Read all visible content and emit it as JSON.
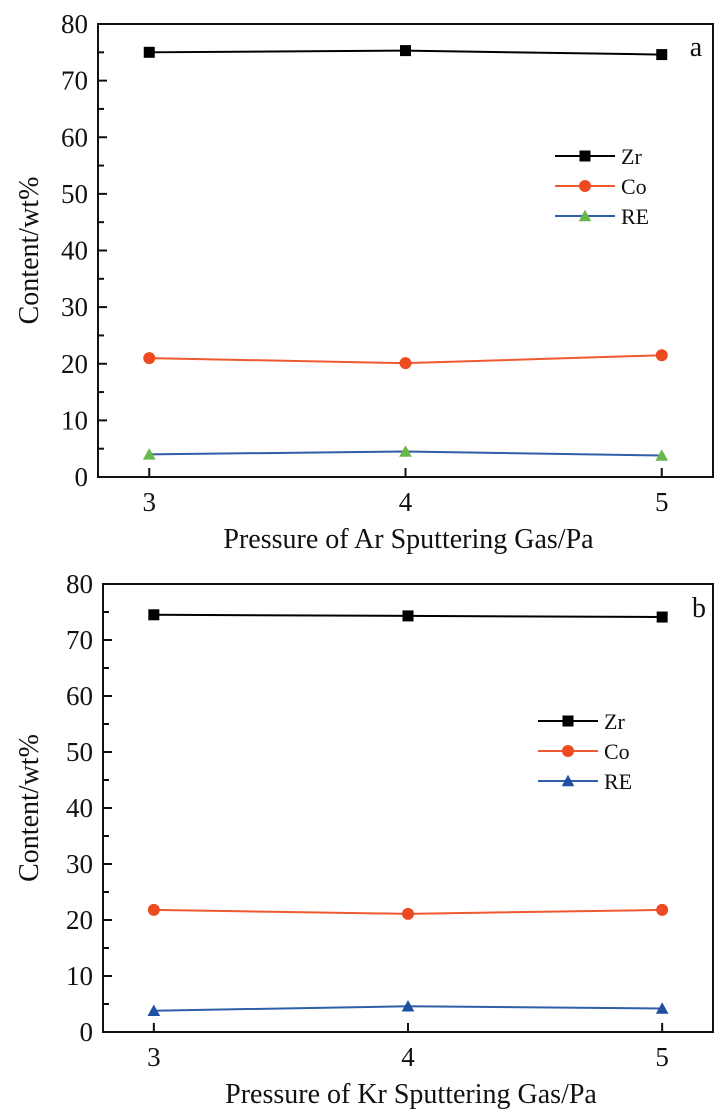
{
  "chart_data": [
    {
      "type": "line",
      "panel_label": "a",
      "title": "",
      "xlabel": "Pressure of Ar Sputtering Gas/Pa",
      "ylabel": "Content/wt%",
      "x": [
        3,
        4,
        5
      ],
      "x_tick_labels": [
        "3",
        "4",
        "5"
      ],
      "xlim": [
        2.8,
        5.2
      ],
      "ylim": [
        0,
        80
      ],
      "y_ticks": [
        0,
        10,
        20,
        30,
        40,
        50,
        60,
        70,
        80
      ],
      "y_tick_labels": [
        "0",
        "10",
        "20",
        "30",
        "40",
        "50",
        "60",
        "70",
        "80"
      ],
      "grid": false,
      "legend_position": "center-right",
      "series": [
        {
          "name": "Zr",
          "values": [
            75.0,
            75.3,
            74.6
          ],
          "line_color": "#000000",
          "marker_color": "#000000",
          "marker": "square"
        },
        {
          "name": "Co",
          "values": [
            21.0,
            20.1,
            21.5
          ],
          "line_color": "#ee5a2f",
          "marker_color": "#ee4a22",
          "marker": "circle"
        },
        {
          "name": "RE",
          "values": [
            4.0,
            4.5,
            3.8
          ],
          "line_color": "#2f5fa8",
          "marker_color": "#6ab74e",
          "marker": "triangle"
        }
      ]
    },
    {
      "type": "line",
      "panel_label": "b",
      "title": "",
      "xlabel": "Pressure of Kr Sputtering Gas/Pa",
      "ylabel": "Content/wt%",
      "x": [
        3,
        4,
        5
      ],
      "x_tick_labels": [
        "3",
        "4",
        "5"
      ],
      "xlim": [
        2.8,
        5.2
      ],
      "ylim": [
        0,
        80
      ],
      "y_ticks": [
        0,
        10,
        20,
        30,
        40,
        50,
        60,
        70,
        80
      ],
      "y_tick_labels": [
        "0",
        "10",
        "20",
        "30",
        "40",
        "50",
        "60",
        "70",
        "80"
      ],
      "grid": false,
      "legend_position": "center-right",
      "series": [
        {
          "name": "Zr",
          "values": [
            74.5,
            74.3,
            74.1
          ],
          "line_color": "#000000",
          "marker_color": "#000000",
          "marker": "square"
        },
        {
          "name": "Co",
          "values": [
            21.8,
            21.1,
            21.8
          ],
          "line_color": "#ee5a2f",
          "marker_color": "#ee4a22",
          "marker": "circle"
        },
        {
          "name": "RE",
          "values": [
            3.8,
            4.6,
            4.2
          ],
          "line_color": "#2f5fa8",
          "marker_color": "#1e4fa0",
          "marker": "triangle"
        }
      ]
    }
  ]
}
